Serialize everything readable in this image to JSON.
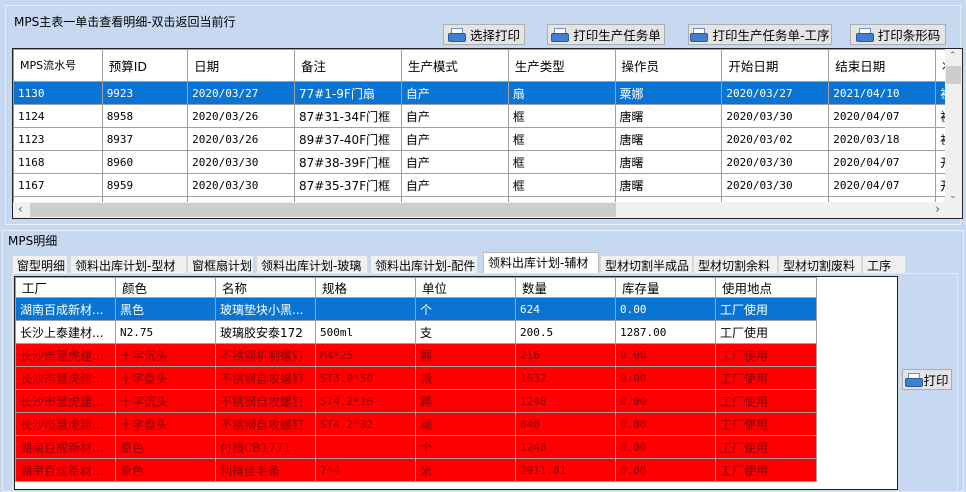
{
  "master": {
    "title": "MPS主表一单击查看明细-双击返回当前行",
    "buttons": [
      "选择打印",
      "打印生产任务单",
      "打印生产任务单-工序",
      "打印条形码"
    ],
    "columns": [
      "MPS流水号",
      "预算ID",
      "日期",
      "备注",
      "生产模式",
      "生产类型",
      "操作员",
      "开始日期",
      "结束日期",
      "状态"
    ],
    "rows": [
      [
        "1130",
        "9923",
        "2020/03/27",
        "77#1-9F门扇",
        "自产",
        "扇",
        "粟娜",
        "2020/03/27",
        "2021/04/10",
        "初始"
      ],
      [
        "1124",
        "8958",
        "2020/03/26",
        "87#31-34F门框",
        "自产",
        "框",
        "唐曙",
        "2020/03/30",
        "2020/04/07",
        "初始"
      ],
      [
        "1123",
        "8937",
        "2020/03/26",
        "89#37-40F门框",
        "自产",
        "框",
        "唐曙",
        "2020/03/02",
        "2020/03/18",
        "初始"
      ],
      [
        "1168",
        "8960",
        "2020/03/30",
        "87#38-39F门框",
        "自产",
        "框",
        "唐曙",
        "2020/03/30",
        "2020/04/07",
        "开始"
      ],
      [
        "1167",
        "8959",
        "2020/03/30",
        "87#35-37F门框",
        "自产",
        "框",
        "唐曙",
        "2020/03/30",
        "2020/04/07",
        "开始"
      ]
    ],
    "selected_row": 0
  },
  "detail": {
    "title": "MPS明细",
    "tabs": [
      "窗型明细",
      "领料出库计划-型材",
      "窗框扇计划",
      "领料出库计划-玻璃",
      "领料出库计划-配件",
      "领料出库计划-辅材",
      "型材切割半成品",
      "型材切割余料",
      "型材切割废料",
      "工序"
    ],
    "active_tab": 5,
    "columns": [
      "工厂",
      "颜色",
      "名称",
      "规格",
      "单位",
      "数量",
      "库存量",
      "使用地点"
    ],
    "rows": [
      [
        "湖南百成新材...",
        "黑色",
        "玻璃垫块小黑...",
        "",
        "个",
        "624",
        "0.00",
        "工厂使用"
      ],
      [
        "长沙上泰建材...",
        "N2.75",
        "玻璃胶安泰172",
        "500ml",
        "支",
        "200.5",
        "1287.00",
        "工厂使用"
      ],
      [
        "长沙市慧虎建...",
        "十字沉头",
        "不锈钢机制螺钉",
        "M4*25",
        "颗",
        "216",
        "0.00",
        "工厂使用"
      ],
      [
        "长沙市慧虎建...",
        "十字盘头",
        "不锈钢自攻螺钉",
        "ST3.9*50",
        "颗",
        "1632",
        "0.00",
        "工厂使用"
      ],
      [
        "长沙市慧虎建...",
        "十字沉头",
        "不锈钢自攻螺钉",
        "ST4.2*16",
        "颗",
        "1248",
        "0.00",
        "工厂使用"
      ],
      [
        "长沙市慧虎建...",
        "十字盘头",
        "不锈钢自攻螺钉",
        "ST4.2*32",
        "颗",
        "840",
        "0.00",
        "工厂使用"
      ],
      [
        "湖南百成新材...",
        "原色",
        "付档CB1771",
        "",
        "个",
        "1248",
        "0.00",
        "工厂使用"
      ],
      [
        "湖南百成新材...",
        "原色",
        "利得佳毛条",
        "7*4",
        "米",
        "2911.81",
        "0.00",
        "工厂使用"
      ]
    ],
    "row_styles": [
      "selected",
      "normal",
      "red",
      "red",
      "red",
      "red",
      "red",
      "red"
    ],
    "print_label": "打印"
  },
  "colors": {
    "selected": "#0a74d4",
    "warning_row": "#ff0000",
    "background": "#c6d9f1"
  }
}
